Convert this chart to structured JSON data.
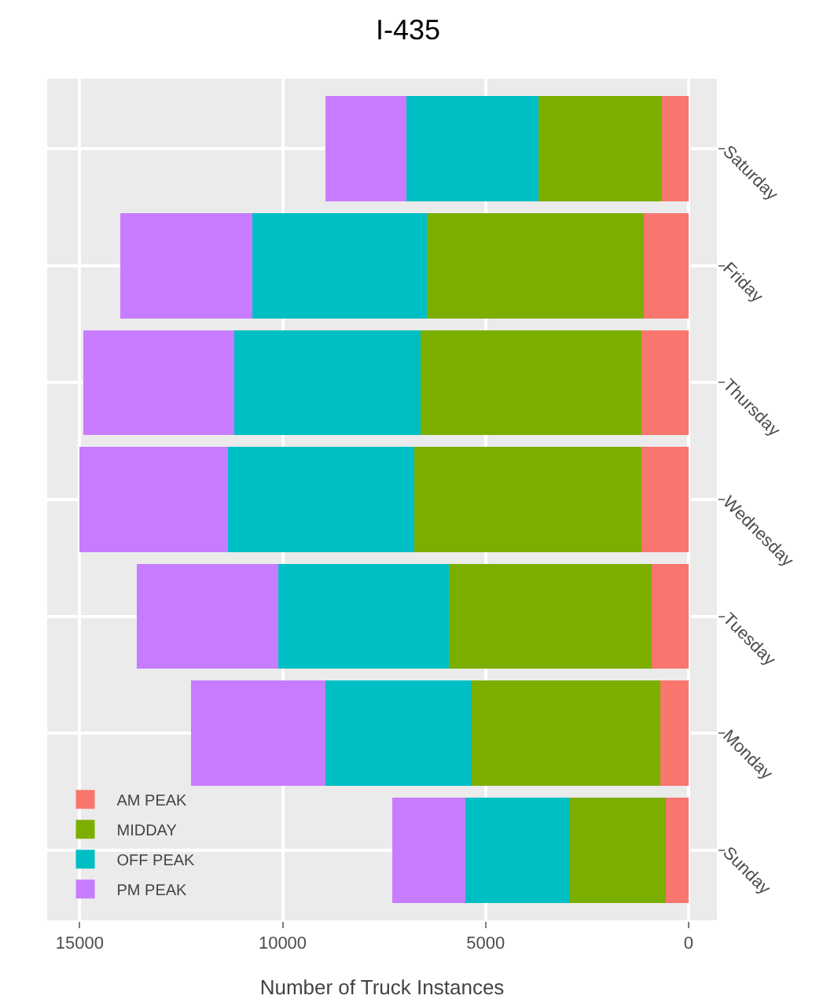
{
  "chart_data": {
    "type": "bar",
    "title": "I-435",
    "orientation": "horizontal",
    "stacked": true,
    "categories": [
      "Saturday",
      "Friday",
      "Thursday",
      "Wednesday",
      "Tuesday",
      "Monday",
      "Sunday"
    ],
    "series": [
      {
        "name": "AM PEAK",
        "color": "#f8766d",
        "values": [
          650,
          1100,
          1150,
          1150,
          900,
          700,
          550
        ]
      },
      {
        "name": "MIDDAY",
        "color": "#7cae00",
        "values": [
          3050,
          5350,
          5450,
          5600,
          5000,
          4650,
          2400
        ]
      },
      {
        "name": "OFF PEAK",
        "color": "#00bfc4",
        "values": [
          3250,
          4300,
          4600,
          4600,
          4200,
          3600,
          2550
        ]
      },
      {
        "name": "PM PEAK",
        "color": "#c77cff",
        "values": [
          2000,
          3250,
          3700,
          3650,
          3500,
          3300,
          1800
        ]
      }
    ],
    "xlabel": "Number of Truck Instances",
    "xlim": [
      15800,
      -700
    ],
    "xticks": [
      0,
      5000,
      10000,
      15000
    ],
    "grid": true,
    "legend": "bottom left"
  }
}
